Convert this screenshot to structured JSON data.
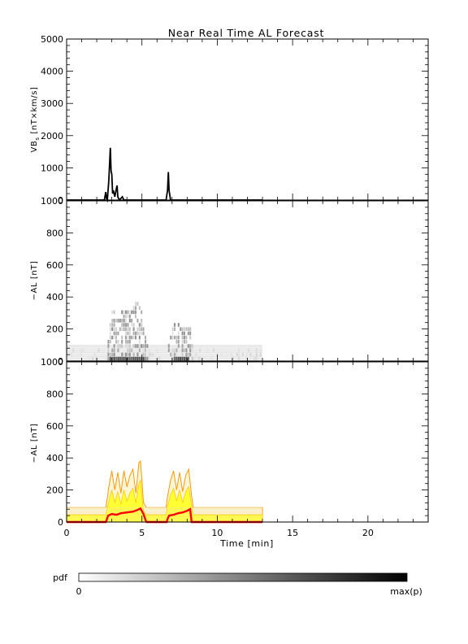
{
  "title": "Near Real Time AL Forecast",
  "colors": {
    "axis": "#000000",
    "vbs_line": "#000000",
    "pdf_max": "#000000",
    "pdf_min": "#ffffff",
    "median_line": "#ff0000",
    "outer_band": "#ff9900",
    "inner_band": "#ffff33"
  },
  "colorbar": {
    "label": "pdf",
    "min_label": "0",
    "max_label": "max(p)"
  },
  "chart_data": [
    {
      "type": "line",
      "panel": "top",
      "title": "Near Real Time AL Forecast",
      "ylabel_main": "VB",
      "ylabel_sub": "s",
      "ylabel_unit": " [nT×km/s]",
      "xlim": [
        0,
        24
      ],
      "ylim": [
        0,
        5000
      ],
      "yticks": [
        "0",
        "1000",
        "2000",
        "3000",
        "4000",
        "5000"
      ],
      "series": [
        {
          "x": [
            0,
            2.5,
            2.6,
            2.65,
            2.7,
            2.8,
            2.9,
            2.95,
            3.0,
            3.05,
            3.1,
            3.2,
            3.3,
            3.35,
            3.4,
            3.5,
            3.7,
            3.75,
            3.8,
            4.0,
            6.6,
            6.7,
            6.75,
            6.8,
            6.9,
            13
          ],
          "y": [
            0,
            0,
            250,
            50,
            0,
            600,
            1620,
            900,
            800,
            200,
            300,
            100,
            350,
            450,
            100,
            0,
            100,
            50,
            0,
            0,
            0,
            300,
            870,
            300,
            0,
            0
          ]
        }
      ]
    },
    {
      "type": "heatmap",
      "panel": "middle",
      "ylabel": "−AL [nT]",
      "xlim": [
        0,
        24
      ],
      "ylim": [
        0,
        1000
      ],
      "yticks": [
        "0",
        "200",
        "400",
        "600",
        "800",
        "1000"
      ],
      "x_end": 13,
      "profile_x": [
        0,
        2.65,
        2.7,
        3.0,
        3.4,
        3.8,
        4.2,
        4.6,
        5.0,
        5.1,
        5.4,
        6.7,
        6.8,
        7.2,
        7.6,
        8.0,
        8.2,
        8.3,
        13
      ],
      "profile_y": [
        100,
        100,
        150,
        350,
        300,
        330,
        320,
        400,
        300,
        180,
        100,
        100,
        160,
        270,
        220,
        260,
        200,
        100,
        100
      ],
      "baseline": 100
    },
    {
      "type": "area",
      "panel": "bottom",
      "ylabel": "−AL [nT]",
      "xlabel": "Time [min]",
      "xlim": [
        0,
        24
      ],
      "ylim": [
        0,
        1000
      ],
      "yticks": [
        "0",
        "200",
        "400",
        "600",
        "800",
        "1000"
      ],
      "xticks": [
        "0",
        "5",
        "10",
        "15",
        "20"
      ],
      "xtick_values": [
        0,
        5,
        10,
        15,
        20
      ],
      "series": [
        {
          "role": "outer_upper",
          "x": [
            0,
            2.6,
            2.7,
            2.8,
            3.0,
            3.2,
            3.4,
            3.6,
            3.8,
            4.0,
            4.2,
            4.4,
            4.6,
            4.8,
            4.9,
            5.0,
            5.1,
            5.3,
            6.6,
            6.7,
            6.9,
            7.1,
            7.3,
            7.5,
            7.7,
            7.9,
            8.1,
            8.3,
            8.4,
            13
          ],
          "y": [
            90,
            90,
            150,
            220,
            320,
            200,
            310,
            180,
            320,
            220,
            290,
            330,
            180,
            370,
            380,
            260,
            120,
            90,
            90,
            160,
            260,
            320,
            200,
            310,
            190,
            290,
            330,
            160,
            90,
            90
          ]
        },
        {
          "role": "inner_upper",
          "x": [
            0,
            2.6,
            2.7,
            2.8,
            3.0,
            3.2,
            3.4,
            3.6,
            3.8,
            4.0,
            4.2,
            4.4,
            4.6,
            4.8,
            4.9,
            5.0,
            5.1,
            5.3,
            6.6,
            6.7,
            6.9,
            7.1,
            7.3,
            7.5,
            7.7,
            7.9,
            8.1,
            8.3,
            8.4,
            13
          ],
          "y": [
            45,
            45,
            90,
            130,
            200,
            120,
            190,
            110,
            200,
            130,
            180,
            210,
            120,
            240,
            260,
            160,
            70,
            45,
            45,
            100,
            170,
            210,
            130,
            200,
            120,
            190,
            220,
            100,
            45,
            45
          ]
        },
        {
          "role": "median",
          "x": [
            0,
            2.6,
            2.65,
            2.75,
            3.0,
            3.3,
            3.6,
            4.0,
            4.4,
            4.7,
            4.9,
            5.1,
            5.25,
            5.3,
            6.65,
            6.7,
            6.8,
            7.1,
            7.4,
            7.7,
            8.0,
            8.2,
            8.3,
            13
          ],
          "y": [
            0,
            0,
            10,
            40,
            50,
            45,
            55,
            60,
            65,
            75,
            85,
            50,
            10,
            0,
            0,
            20,
            40,
            45,
            55,
            60,
            70,
            80,
            0,
            0
          ]
        }
      ]
    }
  ]
}
